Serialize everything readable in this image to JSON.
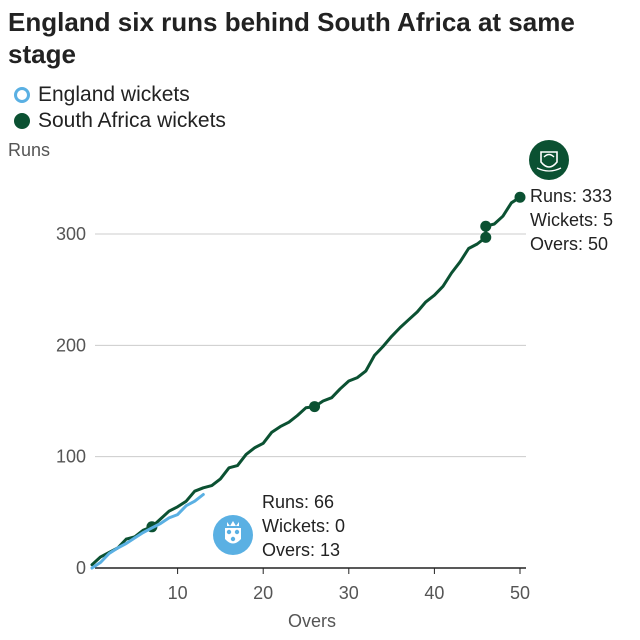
{
  "title": "England six runs behind South Africa at same stage",
  "legend": [
    {
      "label": "England wickets",
      "style": "hollow",
      "color": "#5ab0e3"
    },
    {
      "label": "South Africa wickets",
      "style": "filled",
      "color": "#0b5132"
    }
  ],
  "icons": {
    "sa": "south-africa-crest-icon",
    "eng": "england-crest-icon"
  },
  "chart_data": {
    "type": "line",
    "title": "England six runs behind South Africa at same stage",
    "ylabel": "Runs",
    "xlabel": "Overs",
    "xlim": [
      0,
      50
    ],
    "ylim": [
      0,
      340
    ],
    "xticks": [
      10,
      20,
      30,
      40,
      50
    ],
    "yticks": [
      0,
      100,
      200,
      300
    ],
    "grid": "horizontal",
    "legend_position": "top-left",
    "series": [
      {
        "name": "South Africa",
        "color": "#0b5132",
        "points": [
          [
            0,
            3
          ],
          [
            1,
            10
          ],
          [
            2,
            14
          ],
          [
            3,
            18
          ],
          [
            4,
            26
          ],
          [
            5,
            28
          ],
          [
            6,
            34
          ],
          [
            7,
            37
          ],
          [
            8,
            44
          ],
          [
            9,
            51
          ],
          [
            10,
            55
          ],
          [
            11,
            60
          ],
          [
            12,
            69
          ],
          [
            13,
            72
          ],
          [
            14,
            74
          ],
          [
            15,
            80
          ],
          [
            16,
            90
          ],
          [
            17,
            92
          ],
          [
            18,
            102
          ],
          [
            19,
            108
          ],
          [
            20,
            112
          ],
          [
            21,
            122
          ],
          [
            22,
            127
          ],
          [
            23,
            131
          ],
          [
            24,
            137
          ],
          [
            25,
            144
          ],
          [
            26,
            145
          ],
          [
            27,
            150
          ],
          [
            28,
            153
          ],
          [
            29,
            161
          ],
          [
            30,
            168
          ],
          [
            31,
            171
          ],
          [
            32,
            177
          ],
          [
            33,
            191
          ],
          [
            34,
            199
          ],
          [
            35,
            208
          ],
          [
            36,
            216
          ],
          [
            37,
            223
          ],
          [
            38,
            230
          ],
          [
            39,
            239
          ],
          [
            40,
            245
          ],
          [
            41,
            253
          ],
          [
            42,
            265
          ],
          [
            43,
            275
          ],
          [
            44,
            287
          ],
          [
            45,
            291
          ],
          [
            46,
            297
          ],
          [
            46,
            307
          ],
          [
            47,
            309
          ],
          [
            48,
            316
          ],
          [
            49,
            328
          ],
          [
            50,
            333
          ]
        ],
        "wickets": [
          [
            7,
            37
          ],
          [
            26,
            145
          ],
          [
            46,
            297
          ],
          [
            46,
            307
          ],
          [
            50,
            333
          ]
        ]
      },
      {
        "name": "England",
        "color": "#5ab0e3",
        "points": [
          [
            0,
            0
          ],
          [
            1,
            5
          ],
          [
            2,
            13
          ],
          [
            3,
            18
          ],
          [
            4,
            22
          ],
          [
            5,
            27
          ],
          [
            6,
            32
          ],
          [
            7,
            36
          ],
          [
            8,
            40
          ],
          [
            9,
            45
          ],
          [
            10,
            48
          ],
          [
            11,
            56
          ],
          [
            12,
            60
          ],
          [
            13,
            66
          ]
        ],
        "wickets": []
      }
    ]
  },
  "annotations": {
    "sa": {
      "runs": "Runs: 333",
      "wickets": "Wickets: 5",
      "overs": "Overs: 50"
    },
    "eng": {
      "runs": "Runs: 66",
      "wickets": "Wickets: 0",
      "overs": "Overs: 13"
    }
  }
}
